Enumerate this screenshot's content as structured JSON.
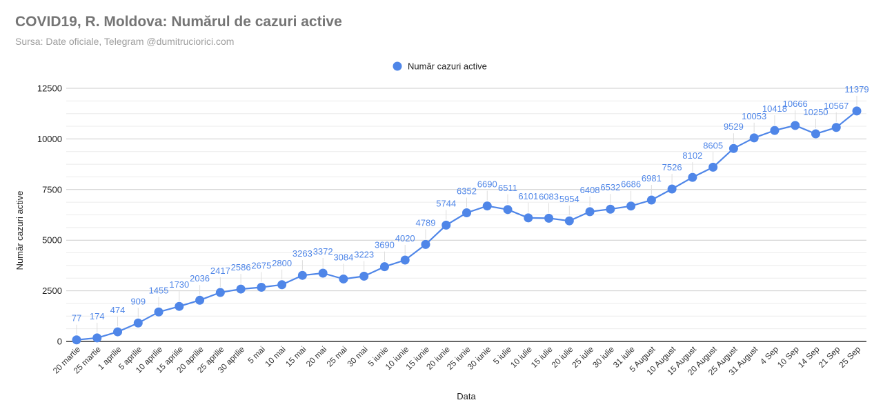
{
  "header": {
    "title": "COVID19, R. Moldova: Numărul de cazuri active",
    "subtitle": "Sursa: Date oficiale, Telegram @dumitruciorici.com"
  },
  "colors": {
    "series": "#4f86e8",
    "grid_major": "#cccccc",
    "grid_minor": "#ebebeb",
    "axis": "#333333",
    "title": "#757575",
    "subtitle": "#9e9e9e"
  },
  "chart_data": {
    "type": "line",
    "xlabel": "Data",
    "ylabel": "Număr cazuri active",
    "ylim": [
      0,
      12500
    ],
    "yticks": [
      0,
      2500,
      5000,
      7500,
      10000,
      12500
    ],
    "y_minor_step": 625,
    "grid": true,
    "legend_position": "top",
    "categories": [
      "20 martie",
      "25 martie",
      "1 aprilie",
      "5 aprilie",
      "10 aprilie",
      "15 aprilie",
      "20 aprilie",
      "25 aprilie",
      "30 aprilie",
      "5 mai",
      "10 mai",
      "15 mai",
      "20 mai",
      "25 mai",
      "30 mai",
      "5 iunie",
      "10 iunie",
      "15 iunie",
      "20 iunie",
      "25 iunie",
      "30 iunie",
      "5 iulie",
      "10 iulie",
      "15 iulie",
      "20 iulie",
      "25 iulie",
      "30 iulie",
      "31 iulie",
      "5 August",
      "10 August",
      "15 August",
      "20 August",
      "25 August",
      "31 August",
      "4 Sep",
      "10 Sep",
      "14 Sep",
      "21 Sep",
      "25 Sep"
    ],
    "series": [
      {
        "name": "Număr cazuri active",
        "values": [
          77,
          174,
          474,
          909,
          1455,
          1730,
          2036,
          2417,
          2586,
          2675,
          2800,
          3263,
          3372,
          3084,
          3223,
          3690,
          4020,
          4789,
          5744,
          6352,
          6690,
          6511,
          6101,
          6083,
          5954,
          6408,
          6532,
          6686,
          6981,
          7526,
          8102,
          8605,
          9529,
          10053,
          10418,
          10666,
          10250,
          10567,
          11379
        ]
      }
    ]
  }
}
